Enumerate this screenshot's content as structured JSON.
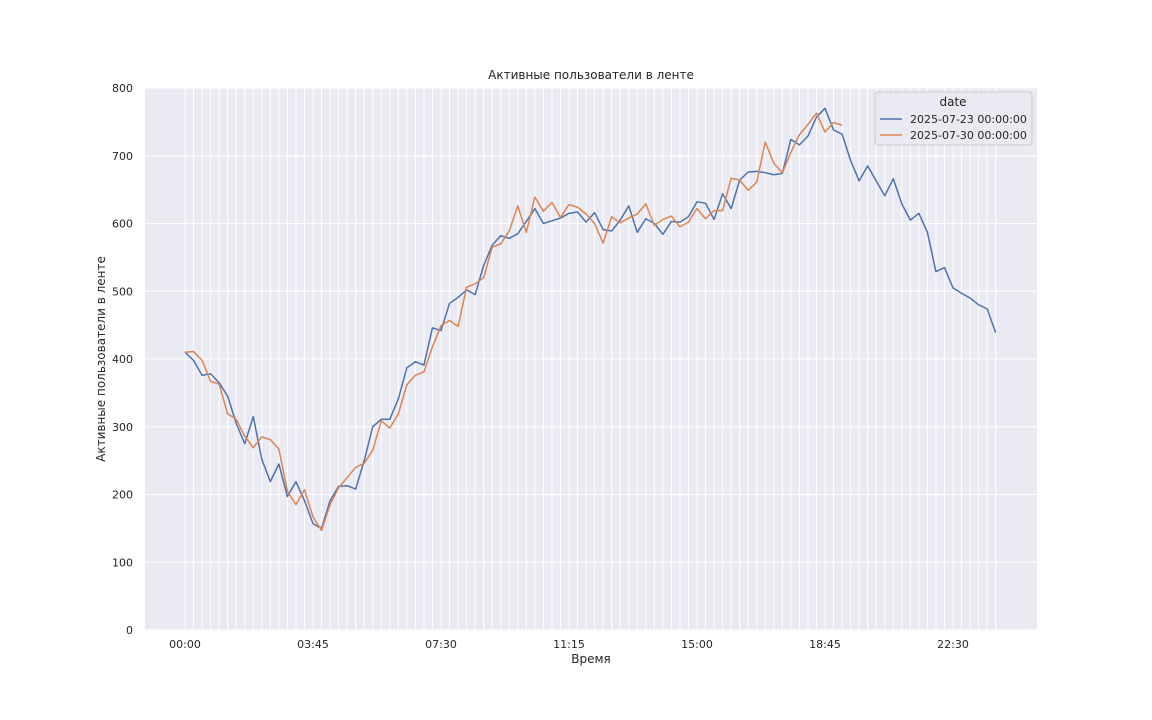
{
  "chart_data": {
    "type": "line",
    "title": "Активные пользователи в ленте",
    "xlabel": "Время",
    "ylabel": "Активные пользователи в ленте",
    "x_tick_labels": [
      "00:00",
      "03:45",
      "07:30",
      "11:15",
      "15:00",
      "18:45",
      "22:30"
    ],
    "y_ticks": [
      0,
      100,
      200,
      300,
      400,
      500,
      600,
      700,
      800
    ],
    "ylim": [
      0,
      800
    ],
    "x_step_minutes": 15,
    "grid": true,
    "legend": {
      "title": "date",
      "placement": "top-right"
    },
    "series": [
      {
        "name": "2025-07-23 00:00:00",
        "color": "#4c72b0",
        "values": [
          410,
          398,
          376,
          378,
          365,
          345,
          305,
          275,
          315,
          252,
          219,
          245,
          197,
          219,
          191,
          157,
          150,
          191,
          212,
          213,
          208,
          250,
          300,
          311,
          311,
          341,
          387,
          396,
          391,
          446,
          442,
          482,
          491,
          502,
          495,
          538,
          568,
          582,
          578,
          585,
          603,
          622,
          600,
          604,
          608,
          615,
          617,
          602,
          616,
          591,
          589,
          605,
          626,
          587,
          607,
          600,
          584,
          603,
          602,
          610,
          632,
          630,
          606,
          644,
          622,
          664,
          676,
          677,
          675,
          672,
          674,
          724,
          716,
          729,
          757,
          770,
          738,
          732,
          693,
          663,
          685,
          663,
          641,
          666,
          629,
          605,
          615,
          587,
          529,
          535,
          505,
          497,
          490,
          480,
          474,
          439
        ]
      },
      {
        "name": "2025-07-30 00:00:00",
        "color": "#dd8452",
        "values": [
          410,
          411,
          398,
          367,
          363,
          319,
          311,
          286,
          269,
          285,
          281,
          267,
          205,
          185,
          207,
          167,
          147,
          185,
          210,
          225,
          240,
          246,
          265,
          309,
          298,
          319,
          362,
          376,
          381,
          418,
          449,
          457,
          448,
          506,
          511,
          520,
          565,
          570,
          589,
          626,
          587,
          639,
          618,
          631,
          609,
          628,
          624,
          614,
          600,
          571,
          610,
          601,
          608,
          614,
          629,
          597,
          606,
          611,
          595,
          602,
          622,
          607,
          619,
          619,
          667,
          664,
          649,
          661,
          720,
          689,
          675,
          705,
          731,
          746,
          763,
          735,
          749,
          745
        ]
      }
    ]
  }
}
